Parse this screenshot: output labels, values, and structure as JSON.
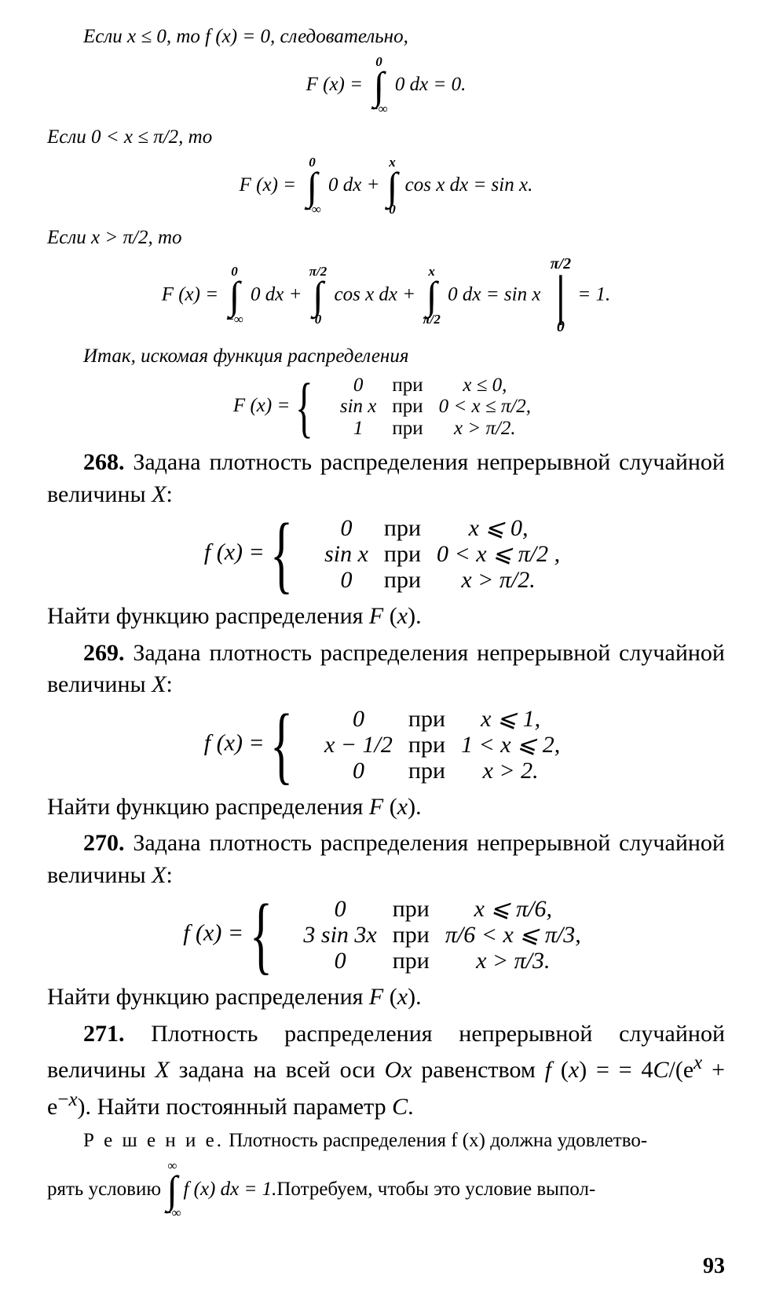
{
  "colors": {
    "text": "#000000",
    "background": "#ffffff"
  },
  "typography": {
    "base_font_pt": 30,
    "small_font_pt": 25,
    "family": "Times New Roman (italic scan)"
  },
  "page_number": "93",
  "l1": "Если  x ≤ 0,  то  f (x) = 0,  следовательно,",
  "eq1": {
    "lhs": "F (x) = ",
    "int1": {
      "upper": "0",
      "lower": "−∞",
      "body": " 0 dx"
    },
    "tail": " = 0."
  },
  "l2": "Если  0 < x ≤ π/2,  то",
  "eq2": {
    "lhs": "F (x) = ",
    "int1": {
      "upper": "0",
      "lower": "−∞",
      "body": " 0 dx"
    },
    "int2": {
      "upper": "x",
      "lower": "0",
      "body": " cos x dx"
    },
    "tail": " = sin x."
  },
  "l3": "Если  x > π/2,  то",
  "eq3": {
    "lhs": "F (x) = ",
    "int1": {
      "upper": "0",
      "lower": "−∞",
      "body": " 0 dx"
    },
    "int2": {
      "upper": "π/2",
      "lower": "0",
      "body": " cos x dx"
    },
    "int3": {
      "upper": "x",
      "lower": "π/2",
      "body": " 0 dx"
    },
    "mid": " = sin x ",
    "eval": {
      "upper": "π/2",
      "lower": "0"
    },
    "tail": " = 1."
  },
  "l4": "Итак, искомая функция распределения",
  "eq4": {
    "lhs": "F (x) = ",
    "rows": [
      {
        "v": "0",
        "w": "при",
        "c": "x ≤ 0,"
      },
      {
        "v": "sin x",
        "w": "при",
        "c": "0 < x ≤ π/2,"
      },
      {
        "v": "1",
        "w": "при",
        "c": "x > π/2."
      }
    ]
  },
  "p268a": "268. Задана плотность распределения непрерывной случайной величины X:",
  "p268num": "268.",
  "eq268": {
    "lhs": "f (x) = ",
    "rows": [
      {
        "v": "0",
        "w": "при",
        "c": "x ⩽ 0,"
      },
      {
        "v": "sin x",
        "w": "при",
        "c": "0 < x ⩽ π/2 ,"
      },
      {
        "v": "0",
        "w": "при",
        "c": "x > π/2."
      }
    ]
  },
  "p268b": "Найти функцию распределения F (x).",
  "p269num": "269.",
  "p269a": " Задана плотность распределения непрерывной случайной величины X:",
  "eq269": {
    "lhs": "f (x) = ",
    "rows": [
      {
        "v": "0",
        "w": "при",
        "c": "x ⩽ 1,"
      },
      {
        "v": "x − 1/2",
        "w": "при",
        "c": "1 < x ⩽ 2,"
      },
      {
        "v": "0",
        "w": "при",
        "c": "      x > 2."
      }
    ]
  },
  "p269b": "Найти функцию распределения F (x).",
  "p270num": "270.",
  "p270a": " Задана плотность распределения непрерывной случайной величины X:",
  "eq270": {
    "lhs": "f (x) = ",
    "rows": [
      {
        "v": "0",
        "w": "при",
        "c": "        x ⩽ π/6,"
      },
      {
        "v": "3 sin 3x",
        "w": "при",
        "c": "π/6 < x ⩽ π/3,"
      },
      {
        "v": "0",
        "w": "при",
        "c": "        x > π/3."
      }
    ]
  },
  "p270b": "Найти функцию распределения F (x).",
  "p271num": "271.",
  "p271a": " Плотность распределения непрерывной случайной величины X задана на всей оси Ox равенством f (x) = = 4C/(eˣ + e⁻ˣ). Найти постоянный параметр C.",
  "sol_label": "Р е ш е н и е.",
  "sol_text1": " Плотность распределения f (x) должна удовлетво-",
  "sol_text2a": "рять условию ",
  "sol_int": {
    "upper": "∞",
    "lower": "−∞",
    "body": " f (x) dx = 1."
  },
  "sol_text2b": " Потребуем, чтобы это условие выпол-"
}
